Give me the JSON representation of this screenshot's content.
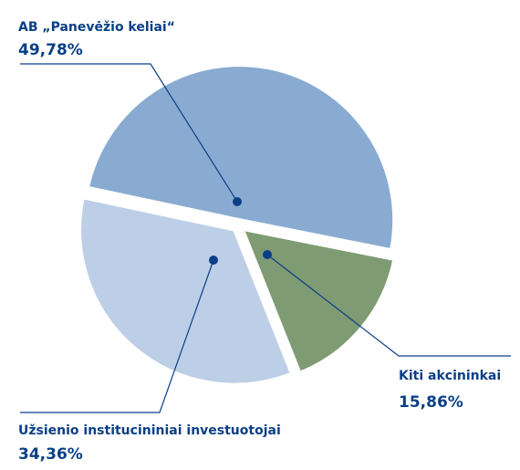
{
  "chart_data": {
    "type": "pie",
    "categories": [
      "AB „Panevėžio keliai“",
      "Kiti akcininkai",
      "Užsienio institucininiai investuotojai"
    ],
    "values": [
      49.78,
      15.86,
      34.36
    ],
    "value_labels": [
      "49,78%",
      "15,86%",
      "34,36%"
    ],
    "colors": [
      "#8aabd1",
      "#7f9b73",
      "#bdcfe7"
    ]
  }
}
